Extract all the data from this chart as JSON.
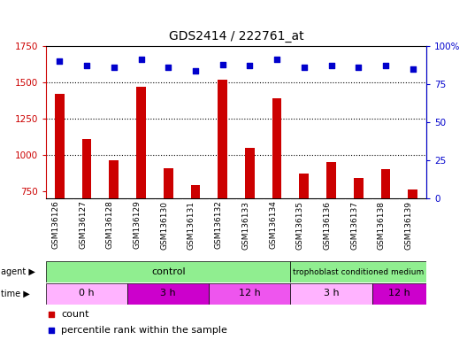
{
  "title": "GDS2414 / 222761_at",
  "samples": [
    "GSM136126",
    "GSM136127",
    "GSM136128",
    "GSM136129",
    "GSM136130",
    "GSM136131",
    "GSM136132",
    "GSM136133",
    "GSM136134",
    "GSM136135",
    "GSM136136",
    "GSM136137",
    "GSM136138",
    "GSM136139"
  ],
  "counts": [
    1420,
    1110,
    960,
    1470,
    910,
    790,
    1520,
    1050,
    1390,
    870,
    950,
    840,
    900,
    760
  ],
  "percentiles": [
    90,
    87,
    86,
    91,
    86,
    84,
    88,
    87,
    91,
    86,
    87,
    86,
    87,
    85
  ],
  "ylim_left": [
    700,
    1750
  ],
  "ylim_right": [
    0,
    100
  ],
  "yticks_left": [
    750,
    1000,
    1250,
    1500,
    1750
  ],
  "yticks_right": [
    0,
    25,
    50,
    75,
    100
  ],
  "right_tick_labels": [
    "0",
    "25",
    "50",
    "75",
    "100%"
  ],
  "bar_color": "#cc0000",
  "dot_color": "#0000cc",
  "background_color": "#ffffff",
  "grid_color": "#000000",
  "xlabel_area_color": "#d0d0d0",
  "tick_label_color": "#cc0000",
  "right_tick_color": "#0000cc",
  "bar_width": 0.35,
  "control_samples": 9,
  "tcm_samples": 5,
  "control_color": "#90ee90",
  "tcm_color": "#90ee90",
  "time_groups": [
    {
      "label": "0 h",
      "count": 3,
      "color": "#ffaaff"
    },
    {
      "label": "3 h",
      "count": 3,
      "color": "#dd00dd"
    },
    {
      "label": "12 h",
      "count": 3,
      "color": "#ee44ee"
    },
    {
      "label": "3 h",
      "count": 3,
      "color": "#ffaaff"
    },
    {
      "label": "12 h",
      "count": 2,
      "color": "#dd00dd"
    }
  ],
  "legend_count_color": "#cc0000",
  "legend_pct_color": "#0000cc"
}
